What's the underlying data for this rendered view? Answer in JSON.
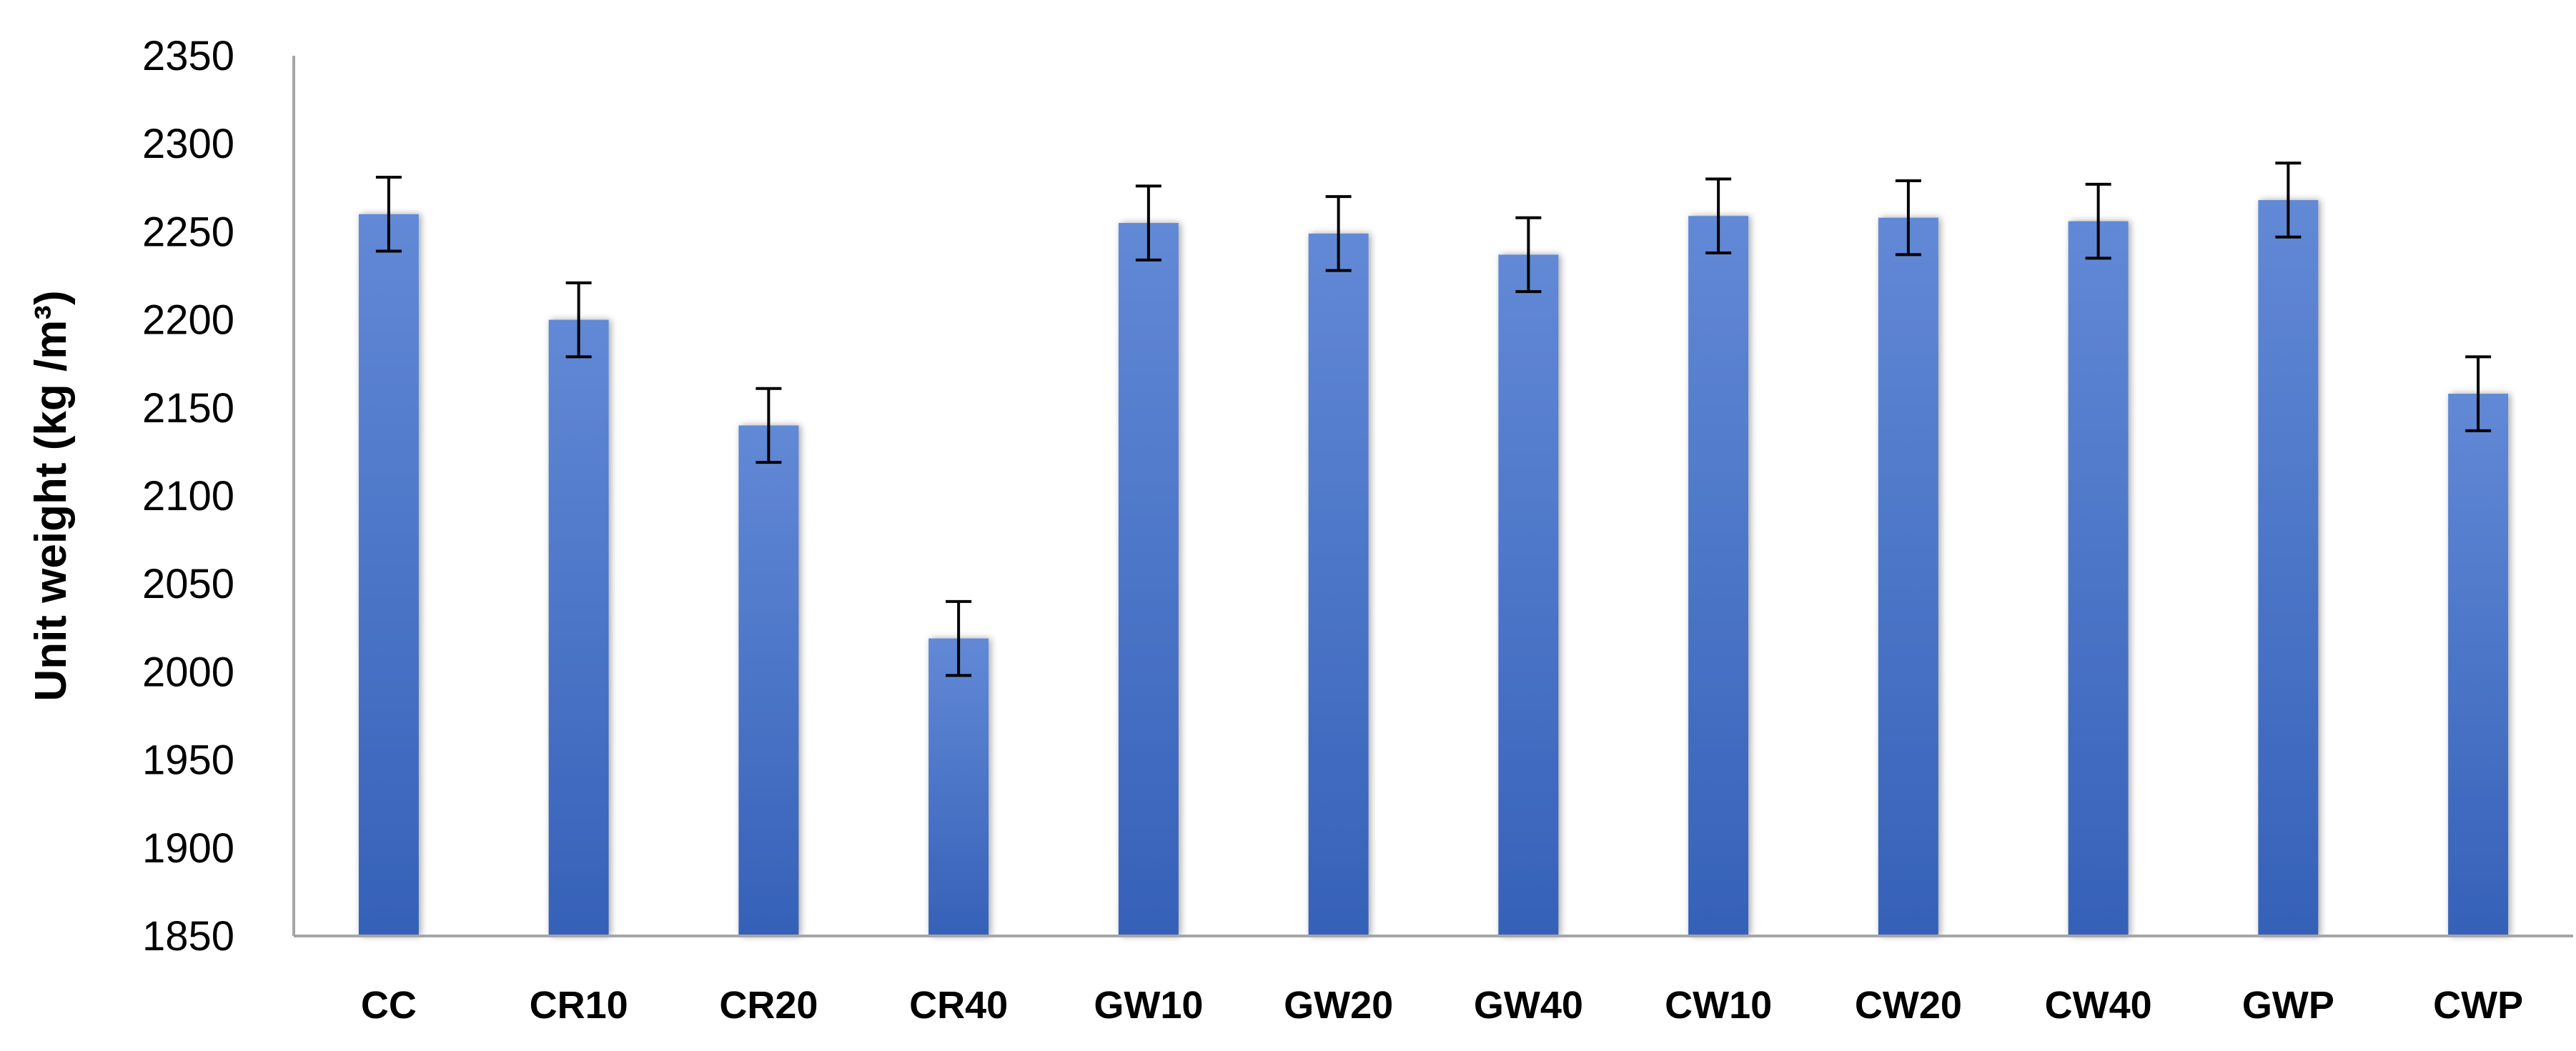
{
  "chart_data": {
    "type": "bar",
    "title": "",
    "xlabel": "",
    "ylabel": "Unit weight (kg /m³)",
    "ylim": [
      1850,
      2350
    ],
    "yticks": [
      1850,
      1900,
      1950,
      2000,
      2050,
      2100,
      2150,
      2200,
      2250,
      2300,
      2350
    ],
    "grid": false,
    "legend": "none",
    "bar_color": "#4472C4",
    "bar_color_light": "#6289D6",
    "bar_color_dark": "#3561B8",
    "axis_color": "#A6A6A6",
    "errorbar_color": "#000000",
    "categories": [
      "CC",
      "CR10",
      "CR20",
      "CR40",
      "GW10",
      "GW20",
      "GW40",
      "CW10",
      "CW20",
      "CW40",
      "GWP",
      "CWP"
    ],
    "values": [
      2260,
      2200,
      2140,
      2019,
      2255,
      2249,
      2237,
      2259,
      2258,
      2256,
      2268,
      2158
    ],
    "error": [
      21,
      21,
      21,
      21,
      21,
      21,
      21,
      21,
      21,
      21,
      21,
      21
    ]
  }
}
